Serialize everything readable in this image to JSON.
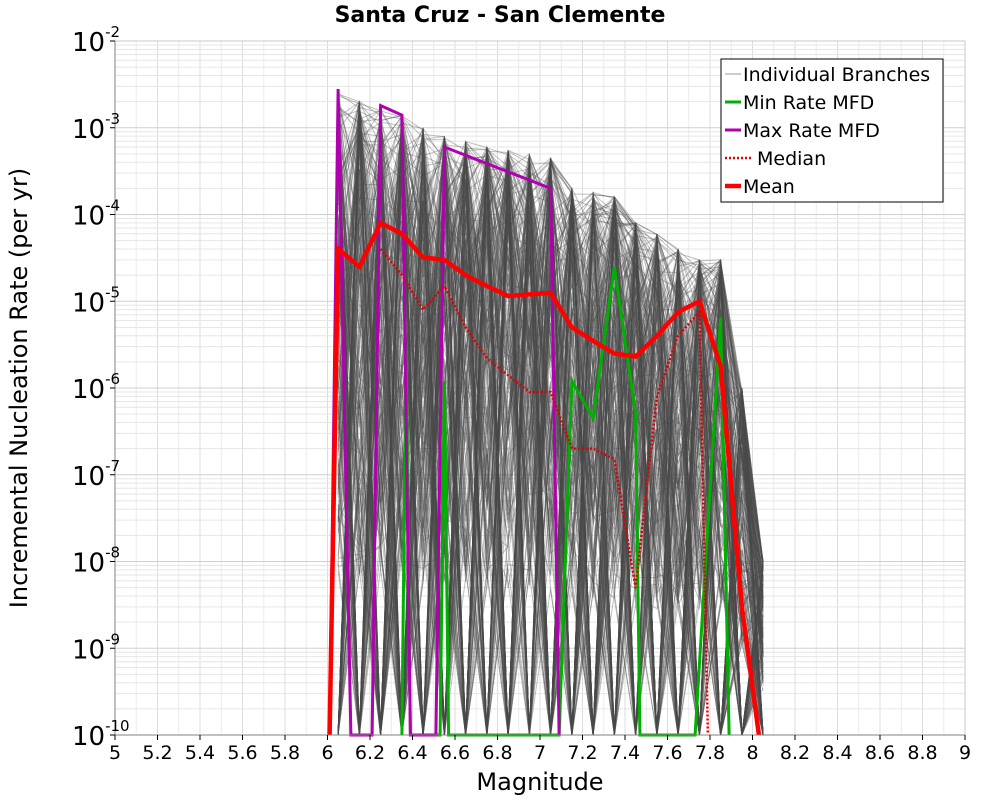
{
  "chart_data": {
    "type": "line",
    "title": "Santa Cruz - San Clemente",
    "xlabel": "Magnitude",
    "ylabel": "Incremental Nucleation Rate (per yr)",
    "xlim": [
      5,
      9
    ],
    "ylim": [
      1e-10,
      0.01
    ],
    "yscale": "log",
    "grid": true,
    "legend_position": "top-right",
    "x_ticks": [
      "5",
      "5.2",
      "5.4",
      "5.6",
      "5.8",
      "6",
      "6.2",
      "6.4",
      "6.6",
      "6.8",
      "7",
      "7.2",
      "7.4",
      "7.6",
      "7.8",
      "8",
      "8.2",
      "8.4",
      "8.6",
      "8.8",
      "9"
    ],
    "y_ticks": [
      {
        "base": "10",
        "exp": "-2",
        "value": 0.01
      },
      {
        "base": "10",
        "exp": "-3",
        "value": 0.001
      },
      {
        "base": "10",
        "exp": "-4",
        "value": 0.0001
      },
      {
        "base": "10",
        "exp": "-5",
        "value": 1e-05
      },
      {
        "base": "10",
        "exp": "-6",
        "value": 1e-06
      },
      {
        "base": "10",
        "exp": "-7",
        "value": 1e-07
      },
      {
        "base": "10",
        "exp": "-8",
        "value": 1e-08
      },
      {
        "base": "10",
        "exp": "-9",
        "value": 1e-09
      },
      {
        "base": "10",
        "exp": "-10",
        "value": 1e-10
      }
    ],
    "branch_envelope": {
      "x": [
        6.05,
        6.15,
        6.25,
        6.35,
        6.45,
        6.55,
        6.65,
        6.75,
        6.85,
        6.95,
        7.05,
        7.15,
        7.25,
        7.35,
        7.45,
        7.55,
        7.65,
        7.75,
        7.85,
        7.95,
        8.05
      ],
      "upper": [
        0.0025,
        0.002,
        0.0016,
        0.0014,
        0.001,
        0.0008,
        0.0007,
        0.0006,
        0.00055,
        0.0005,
        0.00045,
        0.0002,
        0.00018,
        0.00016,
        8e-05,
        6e-05,
        4e-05,
        3e-05,
        3e-05,
        1e-06,
        1e-08
      ],
      "lower": [
        1e-10,
        1e-10,
        1e-10,
        1e-10,
        1e-10,
        1e-10,
        1e-10,
        1e-10,
        1e-10,
        1e-10,
        1e-10,
        1e-10,
        1e-10,
        1e-10,
        1e-10,
        1e-10,
        1e-10,
        1e-10,
        1e-10,
        1e-10,
        1e-10
      ]
    },
    "series": [
      {
        "name": "Individual Branches",
        "color": "#9a9a9a",
        "style": "thin",
        "x": [],
        "y": []
      },
      {
        "name": "Min Rate MFD",
        "color": "#00b000",
        "style": "solid",
        "x": [
          6.35,
          6.37,
          6.39,
          6.53,
          6.55,
          6.57,
          7.09,
          7.15,
          7.25,
          7.35,
          7.45,
          7.47,
          7.73,
          7.85,
          7.89
        ],
        "y": [
          1e-10,
          3e-06,
          1e-10,
          1e-10,
          1.2e-06,
          1e-10,
          1e-10,
          1.2e-06,
          4.5e-07,
          2.5e-05,
          5e-07,
          1e-10,
          1e-10,
          6.5e-06,
          1e-10
        ]
      },
      {
        "name": "Max Rate MFD",
        "color": "#b000b0",
        "style": "solid",
        "x": [
          6.01,
          6.05,
          6.11,
          6.21,
          6.25,
          6.35,
          6.39,
          6.51,
          6.55,
          7.05,
          7.09
        ],
        "y": [
          1e-10,
          0.0028,
          1e-10,
          1e-10,
          0.0018,
          0.0014,
          1e-10,
          1e-10,
          0.0006,
          0.0002,
          1e-10
        ]
      },
      {
        "name": "Median",
        "color": "#e00000",
        "style": "dotted",
        "x": [
          6.25,
          6.35,
          6.45,
          6.55,
          6.65,
          6.75,
          6.85,
          6.95,
          7.05,
          7.15,
          7.25,
          7.35,
          7.45,
          7.55,
          7.65,
          7.75,
          7.79
        ],
        "y": [
          4e-05,
          2e-05,
          8e-06,
          1.5e-05,
          5e-06,
          2.2e-06,
          1.4e-06,
          9e-07,
          9e-07,
          2e-07,
          2e-07,
          1.5e-07,
          5e-09,
          8e-07,
          4e-06,
          7.5e-06,
          1e-10
        ]
      },
      {
        "name": "Mean",
        "color": "#ff0000",
        "style": "thick",
        "x": [
          6.01,
          6.05,
          6.15,
          6.25,
          6.35,
          6.45,
          6.55,
          6.65,
          6.75,
          6.85,
          6.95,
          7.05,
          7.15,
          7.25,
          7.35,
          7.45,
          7.55,
          7.65,
          7.75,
          7.85,
          7.95,
          8.03
        ],
        "y": [
          1e-10,
          4e-05,
          2.5e-05,
          8e-05,
          6e-05,
          3.2e-05,
          3e-05,
          2e-05,
          1.5e-05,
          1.15e-05,
          1.2e-05,
          1.25e-05,
          5e-06,
          3.5e-06,
          2.5e-06,
          2.3e-06,
          4e-06,
          7.5e-06,
          1e-05,
          1.8e-06,
          3e-09,
          1e-10
        ]
      }
    ]
  }
}
